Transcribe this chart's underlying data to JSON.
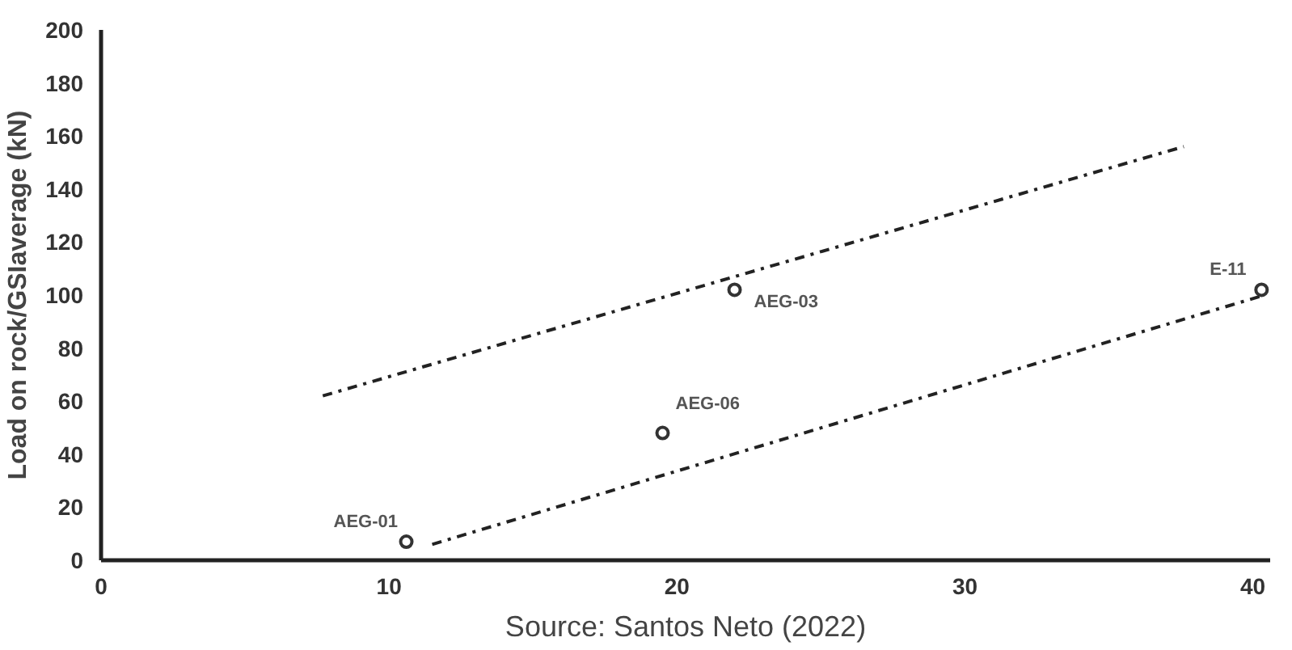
{
  "chart_data": {
    "type": "scatter",
    "ylabel": "Load on rock/GSIaverage (kN)",
    "xlim": [
      0,
      40.6
    ],
    "ylim": [
      0,
      200
    ],
    "xticks": [
      0,
      10,
      20,
      30,
      40
    ],
    "yticks": [
      0,
      20,
      40,
      60,
      80,
      100,
      120,
      140,
      160,
      180,
      200
    ],
    "grid": false,
    "series": [
      {
        "marker": "circle",
        "color": "#333333",
        "x": [
          10.6,
          19.5,
          22,
          40.3
        ],
        "values": [
          7,
          48,
          102,
          102
        ]
      },
      {
        "type": "line",
        "line_style": "dashdot",
        "color": "#222222",
        "x": [
          7.7,
          37.6
        ],
        "values": [
          62,
          156
        ]
      },
      {
        "type": "line",
        "line_style": "dashdot",
        "color": "#222222",
        "x": [
          11.5,
          40.4
        ],
        "values": [
          6,
          100
        ]
      }
    ],
    "annotations": [
      {
        "text": "AEG-01",
        "x": 10.6,
        "y": 7
      },
      {
        "text": "AEG-06",
        "x": 19.5,
        "y": 48
      },
      {
        "text": "AEG-03",
        "x": 22,
        "y": 102
      },
      {
        "text": "E-11",
        "x": 40.3,
        "y": 102
      },
      "Source: Santos Neto (2022)"
    ]
  }
}
